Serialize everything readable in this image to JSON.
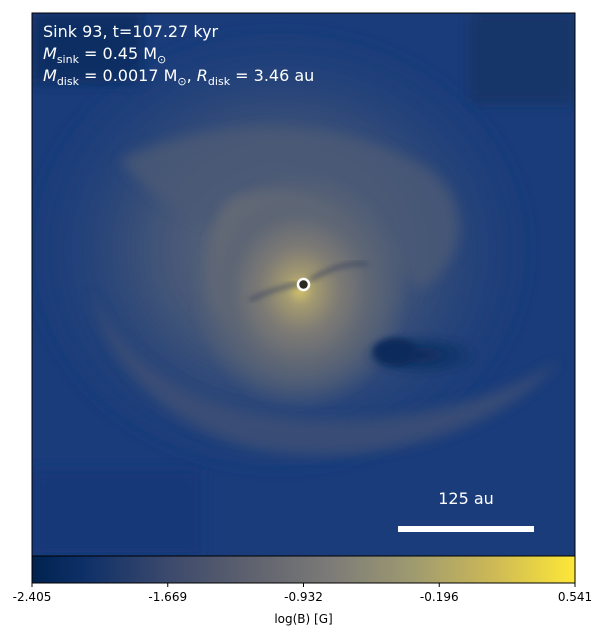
{
  "panel": {
    "line1": "Sink 93, t=107.27 kyr",
    "line2": {
      "symbol": "M",
      "sub": "sink",
      "rest": " = 0.45 M",
      "unit_sub": "⊙"
    },
    "line3": {
      "symbol": "M",
      "sub": "disk",
      "rest": " = 0.0017 M",
      "unit_sub": "⊙",
      "sep": ", ",
      "symbol2": "R",
      "sub2": "disk",
      "rest2": " = 3.46 au"
    },
    "scale_bar_label": "125 au"
  },
  "colorbar": {
    "label": "log(B) [G]",
    "colormap": "cividis",
    "range": [
      -2.405,
      0.541
    ],
    "ticks": [
      "-2.405",
      "-1.669",
      "-0.932",
      "-0.196",
      "0.541"
    ]
  },
  "colors": {
    "low": "#00224e",
    "mid": "#7c7b78",
    "high": "#fee838",
    "sink_marker": "#ffffff",
    "scale_bar": "#ffffff"
  },
  "icons": {
    "sink": "sink-marker-icon"
  }
}
